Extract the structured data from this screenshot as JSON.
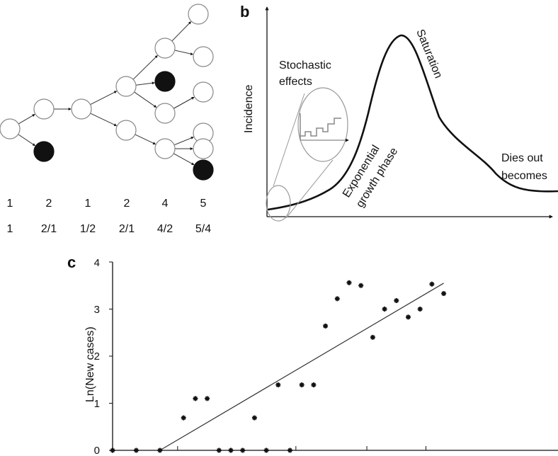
{
  "colors": {
    "line": "#111111",
    "node_fill": "#ffffff",
    "node_stroke": "#888888",
    "infected": "#111111",
    "ellipse": "#999999"
  },
  "panel_a": {
    "nodes": [
      {
        "id": "n0",
        "filled": false
      },
      {
        "id": "n1",
        "filled": false
      },
      {
        "id": "n2",
        "filled": true
      },
      {
        "id": "n3",
        "filled": false
      },
      {
        "id": "n4",
        "filled": false
      },
      {
        "id": "n5",
        "filled": false
      },
      {
        "id": "n6",
        "filled": false
      },
      {
        "id": "n7",
        "filled": true
      },
      {
        "id": "n8",
        "filled": false
      },
      {
        "id": "n9",
        "filled": false
      },
      {
        "id": "n10",
        "filled": false
      },
      {
        "id": "n11",
        "filled": false
      },
      {
        "id": "n12",
        "filled": false
      },
      {
        "id": "n13",
        "filled": false
      },
      {
        "id": "n14",
        "filled": false
      },
      {
        "id": "n15",
        "filled": false
      },
      {
        "id": "n16",
        "filled": true
      }
    ],
    "edges": [
      [
        "n0",
        "n1"
      ],
      [
        "n0",
        "n2"
      ],
      [
        "n1",
        "n3"
      ],
      [
        "n3",
        "n4"
      ],
      [
        "n3",
        "n5"
      ],
      [
        "n4",
        "n6"
      ],
      [
        "n4",
        "n7"
      ],
      [
        "n4",
        "n8"
      ],
      [
        "n5",
        "n9"
      ],
      [
        "n6",
        "n10"
      ],
      [
        "n6",
        "n11"
      ],
      [
        "n8",
        "n12"
      ],
      [
        "n9",
        "n13"
      ],
      [
        "n9",
        "n14"
      ],
      [
        "n9",
        "n16"
      ],
      [
        "n8",
        "n15"
      ]
    ],
    "row1": [
      "1",
      "2",
      "1",
      "2",
      "4",
      "5"
    ],
    "row2": [
      "1",
      "2/1",
      "1/2",
      "2/1",
      "4/2",
      "5/4"
    ]
  },
  "panel_b": {
    "label": "b",
    "ylabel": "Incidence",
    "annotations": {
      "stochastic_1": "Stochastic",
      "stochastic_2": "effects",
      "saturation": "Saturation",
      "exp_1": "Exponential",
      "exp_2": "growth phase",
      "dies_1": "Dies out",
      "dies_2": "becomes"
    }
  },
  "chart_data": {
    "type": "scatter",
    "label": "c",
    "ylabel": "Ln(New cases)",
    "xlabel": "",
    "ylim": [
      0,
      4
    ],
    "yticks": [
      "0",
      "1",
      "2",
      "3",
      "4"
    ],
    "xlim": [
      0,
      30
    ],
    "points": [
      {
        "x": 0,
        "y": 0
      },
      {
        "x": 2,
        "y": 0
      },
      {
        "x": 4,
        "y": 0
      },
      {
        "x": 6,
        "y": 0.69
      },
      {
        "x": 7,
        "y": 1.1
      },
      {
        "x": 8,
        "y": 1.1
      },
      {
        "x": 9,
        "y": 0
      },
      {
        "x": 10,
        "y": 0
      },
      {
        "x": 11,
        "y": 0
      },
      {
        "x": 12,
        "y": 0.69
      },
      {
        "x": 13,
        "y": 0
      },
      {
        "x": 14,
        "y": 1.39
      },
      {
        "x": 15,
        "y": 0
      },
      {
        "x": 16,
        "y": 1.39
      },
      {
        "x": 17,
        "y": 1.39
      },
      {
        "x": 18,
        "y": 2.64
      },
      {
        "x": 19,
        "y": 3.22
      },
      {
        "x": 20,
        "y": 3.56
      },
      {
        "x": 21,
        "y": 3.5
      },
      {
        "x": 22,
        "y": 2.4
      },
      {
        "x": 23,
        "y": 3.0
      },
      {
        "x": 24,
        "y": 3.18
      },
      {
        "x": 25,
        "y": 2.83
      },
      {
        "x": 26,
        "y": 3.0
      },
      {
        "x": 27,
        "y": 3.53
      },
      {
        "x": 28,
        "y": 3.33
      }
    ],
    "trendline": [
      [
        4.0,
        0.0
      ],
      [
        28.0,
        3.55
      ]
    ],
    "grid": false
  }
}
